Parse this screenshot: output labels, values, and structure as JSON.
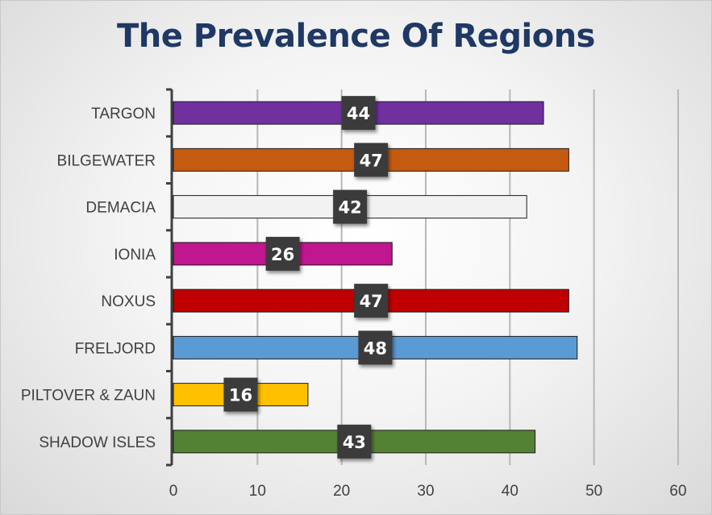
{
  "chart_data": {
    "type": "bar",
    "orientation": "horizontal",
    "title": "The Prevalence Of Regions",
    "categories": [
      "TARGON",
      "BILGEWATER",
      "DEMACIA",
      "IONIA",
      "NOXUS",
      "FRELJORD",
      "PILTOVER & ZAUN",
      "SHADOW ISLES"
    ],
    "values": [
      44,
      47,
      42,
      26,
      47,
      48,
      16,
      43
    ],
    "colors": [
      "#7030a0",
      "#c55a11",
      "#f2f2f2",
      "#c0168f",
      "#c00000",
      "#5b9bd5",
      "#ffc000",
      "#548235"
    ],
    "xlim": [
      0,
      60
    ],
    "xticks": [
      "0",
      "10",
      "20",
      "30",
      "40",
      "50",
      "60"
    ],
    "xlabel": "",
    "ylabel": "",
    "grid": true,
    "data_labels": true
  }
}
